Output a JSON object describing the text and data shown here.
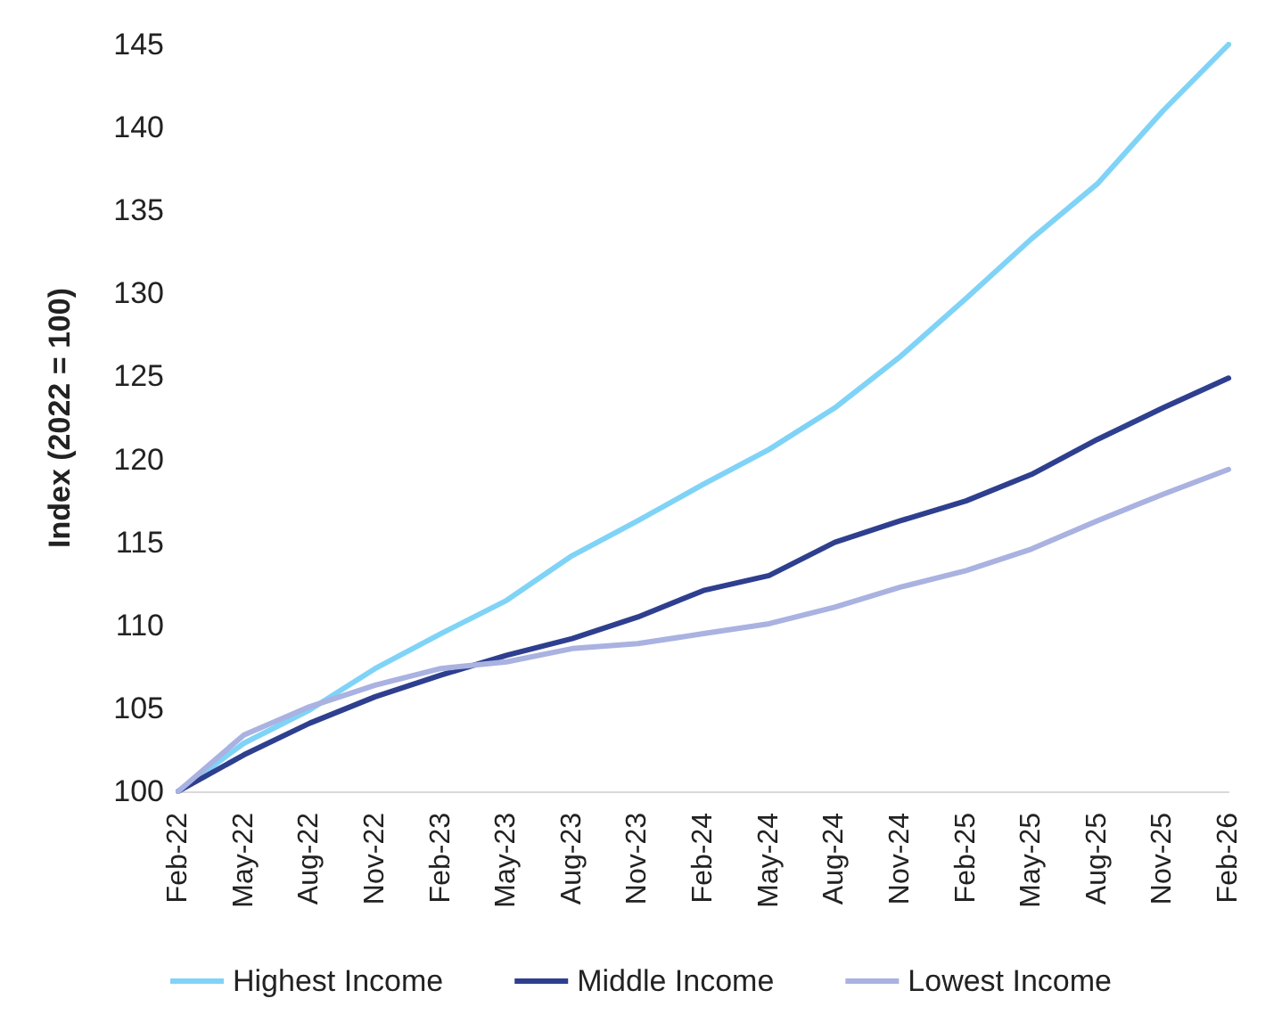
{
  "chart_data": {
    "type": "line",
    "ylabel": "Index (2022 = 100)",
    "categories": [
      "Feb-22",
      "May-22",
      "Aug-22",
      "Nov-22",
      "Feb-23",
      "May-23",
      "Aug-23",
      "Nov-23",
      "Feb-24",
      "May-24",
      "Aug-24",
      "Nov-24",
      "Feb-25",
      "May-25",
      "Aug-25",
      "Nov-25",
      "Feb-26"
    ],
    "series": [
      {
        "name": "Highest Income",
        "color": "#7fd3f7",
        "values": [
          100,
          102.9,
          104.9,
          107.4,
          109.5,
          111.5,
          114.2,
          116.3,
          118.5,
          120.6,
          123.1,
          126.2,
          129.7,
          133.3,
          136.6,
          141,
          145
        ]
      },
      {
        "name": "Middle Income",
        "color": "#2e3f8f",
        "values": [
          100,
          102.2,
          104.1,
          105.7,
          107,
          108.2,
          109.2,
          110.5,
          112.1,
          113,
          115,
          116.3,
          117.5,
          119.1,
          121.2,
          123.1,
          124.9
        ]
      },
      {
        "name": "Lowest Income",
        "color": "#a9b2e0",
        "values": [
          100,
          103.4,
          105.1,
          106.4,
          107.4,
          107.8,
          108.6,
          108.9,
          109.5,
          110.1,
          111.1,
          112.3,
          113.3,
          114.6,
          116.3,
          117.9,
          119.4
        ]
      }
    ],
    "ylim": [
      100,
      145
    ],
    "yticks": [
      100,
      105,
      110,
      115,
      120,
      125,
      130,
      135,
      140,
      145
    ],
    "grid": false,
    "legend": "bottom",
    "marker": "none",
    "line_style": "solid"
  }
}
